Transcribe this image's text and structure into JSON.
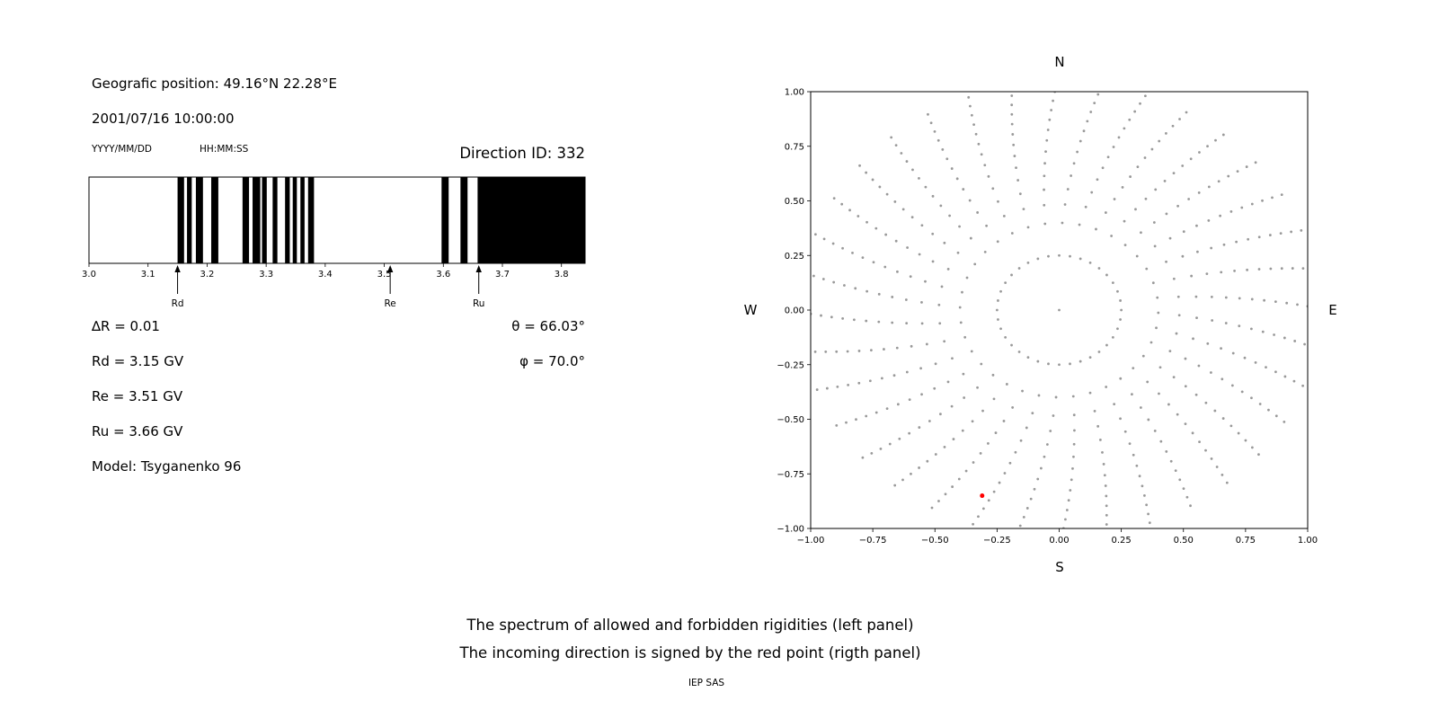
{
  "header": {
    "geo_position": "Geografic position: 49.16°N 22.28°E",
    "datetime": "2001/07/16 10:00:00",
    "date_format_label": "YYYY/MM/DD",
    "time_format_label": "HH:MM:SS",
    "direction_id": "Direction ID: 332"
  },
  "parameters": {
    "delta_r": "∆R = 0.01",
    "theta": "θ = 66.03°",
    "rd": "Rd = 3.15 GV",
    "phi": "φ = 70.0°",
    "re": "Re = 3.51 GV",
    "ru": "Ru = 3.66 GV",
    "model": "Model: Tsyganenko 96"
  },
  "captions": {
    "line1": "The spectrum of allowed and forbidden rigidities (left panel)",
    "line2": "The incoming direction is signed by the red point (rigth panel)",
    "credit": "IEP SAS"
  },
  "chart_data": [
    {
      "type": "bar",
      "name": "rigidity-spectrum",
      "description": "Barcode-style cutoff rigidity spectrum: black bands = allowed rigidities, white = forbidden; rigidity step 0.01 GV",
      "xlim": [
        3.0,
        3.84
      ],
      "xticks": [
        {
          "value": 3.0,
          "label": "3.0"
        },
        {
          "value": 3.1,
          "label": "3.1"
        },
        {
          "value": 3.2,
          "label": "3.2"
        },
        {
          "value": 3.3,
          "label": "3.3"
        },
        {
          "value": 3.4,
          "label": "3.4"
        },
        {
          "value": 3.5,
          "label": "3.5"
        },
        {
          "value": 3.6,
          "label": "3.6"
        },
        {
          "value": 3.7,
          "label": "3.7"
        },
        {
          "value": 3.8,
          "label": "3.8"
        }
      ],
      "allowed_bands": [
        [
          3.15,
          3.161
        ],
        [
          3.166,
          3.174
        ],
        [
          3.181,
          3.193
        ],
        [
          3.207,
          3.219
        ],
        [
          3.26,
          3.271
        ],
        [
          3.277,
          3.29
        ],
        [
          3.293,
          3.301
        ],
        [
          3.311,
          3.319
        ],
        [
          3.332,
          3.34
        ],
        [
          3.345,
          3.352
        ],
        [
          3.358,
          3.365
        ],
        [
          3.371,
          3.381
        ],
        [
          3.597,
          3.609
        ],
        [
          3.629,
          3.641
        ],
        [
          3.658,
          3.84
        ]
      ],
      "markers": [
        {
          "label": "Rd",
          "value": 3.15
        },
        {
          "label": "Re",
          "value": 3.51
        },
        {
          "label": "Ru",
          "value": 3.66
        }
      ],
      "band_color": "#000000"
    },
    {
      "type": "scatter",
      "name": "incoming-direction-map",
      "description": "Sky map of trajectory directions: gray dots along 36 radial spokes (10° azimuth step) plus inner ring; red point marks the incoming direction",
      "xlim": [
        -1,
        1
      ],
      "ylim": [
        -1,
        1
      ],
      "xticks": [
        {
          "value": -1.0,
          "label": "−1.00"
        },
        {
          "value": -0.75,
          "label": "−0.75"
        },
        {
          "value": -0.5,
          "label": "−0.50"
        },
        {
          "value": -0.25,
          "label": "−0.25"
        },
        {
          "value": 0.0,
          "label": "0.00"
        },
        {
          "value": 0.25,
          "label": "0.25"
        },
        {
          "value": 0.5,
          "label": "0.50"
        },
        {
          "value": 0.75,
          "label": "0.75"
        },
        {
          "value": 1.0,
          "label": "1.00"
        }
      ],
      "yticks": [
        {
          "value": 1.0,
          "label": "1.00"
        },
        {
          "value": 0.75,
          "label": "0.75"
        },
        {
          "value": 0.5,
          "label": "0.50"
        },
        {
          "value": 0.25,
          "label": "0.25"
        },
        {
          "value": 0.0,
          "label": "0.00"
        },
        {
          "value": -0.25,
          "label": "−0.25"
        },
        {
          "value": -0.5,
          "label": "−0.50"
        },
        {
          "value": -0.75,
          "label": "−0.75"
        },
        {
          "value": -1.0,
          "label": "−1.00"
        }
      ],
      "compass": {
        "north": "N",
        "south": "S",
        "east": "E",
        "west": "W"
      },
      "dot_color": "#999999",
      "center_point": {
        "x": 0,
        "y": 0
      },
      "red_point": {
        "x": -0.31,
        "y": -0.85,
        "color": "#ff0000"
      },
      "spokes": {
        "count": 36,
        "angle_step_deg": 10,
        "inner_ring_radius": 0.25,
        "outer_radius": 1.04,
        "points_per_spoke": 14,
        "radial_exponent": 0.65,
        "twist_deg": -12
      }
    }
  ]
}
